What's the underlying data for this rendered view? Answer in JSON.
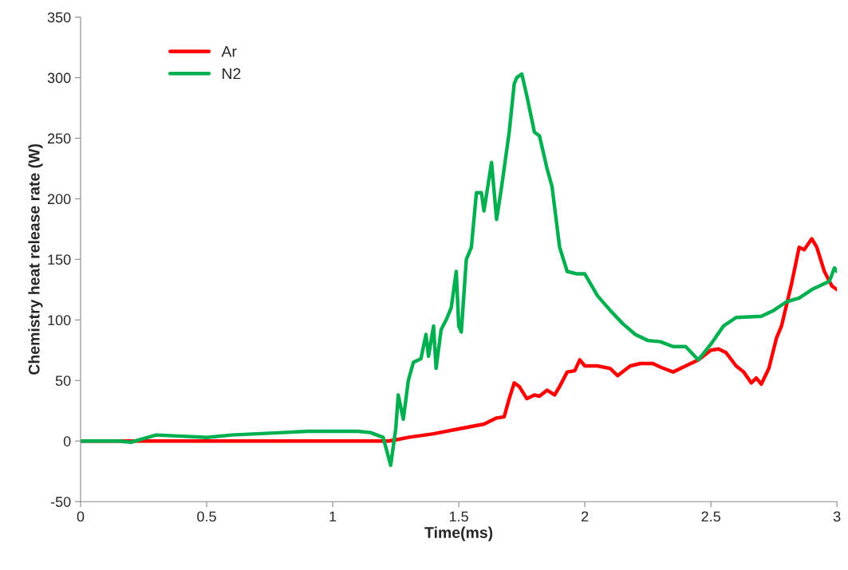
{
  "chart_data": {
    "type": "line",
    "xlabel": "Time(ms)",
    "ylabel": "Chemistry heat release rate (W)",
    "xlim": [
      0,
      3
    ],
    "ylim": [
      -50,
      350
    ],
    "xticks": [
      0,
      0.5,
      1,
      1.5,
      2,
      2.5,
      3
    ],
    "yticks": [
      -50,
      0,
      50,
      100,
      150,
      200,
      250,
      300,
      350
    ],
    "grid": false,
    "legend": "top left",
    "marker": "none",
    "line_style": "solid",
    "series": [
      {
        "name": "Ar",
        "color": "#ff0000",
        "x": [
          0,
          0.5,
          1.0,
          1.22,
          1.25,
          1.3,
          1.4,
          1.5,
          1.55,
          1.6,
          1.65,
          1.68,
          1.7,
          1.72,
          1.74,
          1.77,
          1.8,
          1.82,
          1.85,
          1.88,
          1.9,
          1.93,
          1.96,
          1.98,
          2.0,
          2.05,
          2.1,
          2.13,
          2.18,
          2.22,
          2.27,
          2.3,
          2.35,
          2.4,
          2.45,
          2.5,
          2.53,
          2.56,
          2.6,
          2.63,
          2.66,
          2.68,
          2.7,
          2.73,
          2.76,
          2.78,
          2.82,
          2.85,
          2.87,
          2.9,
          2.92,
          2.95,
          2.98,
          3.0
        ],
        "values": [
          0,
          0,
          0,
          0,
          1,
          3,
          6,
          10,
          12,
          14,
          19,
          20,
          35,
          48,
          45,
          35,
          38,
          37,
          42,
          38,
          45,
          57,
          58,
          67,
          62,
          62,
          60,
          54,
          62,
          64,
          64,
          61,
          57,
          62,
          67,
          75,
          76,
          73,
          62,
          57,
          48,
          52,
          47,
          60,
          85,
          95,
          130,
          160,
          158,
          167,
          160,
          140,
          128,
          125
        ]
      },
      {
        "name": "N2",
        "color": "#00b050",
        "x": [
          0,
          0.15,
          0.2,
          0.25,
          0.3,
          0.4,
          0.5,
          0.6,
          0.7,
          0.8,
          0.9,
          1.0,
          1.1,
          1.15,
          1.2,
          1.23,
          1.25,
          1.26,
          1.28,
          1.3,
          1.32,
          1.35,
          1.37,
          1.38,
          1.4,
          1.41,
          1.43,
          1.45,
          1.47,
          1.49,
          1.5,
          1.51,
          1.53,
          1.55,
          1.57,
          1.59,
          1.6,
          1.63,
          1.65,
          1.67,
          1.7,
          1.72,
          1.73,
          1.75,
          1.77,
          1.8,
          1.82,
          1.85,
          1.87,
          1.9,
          1.93,
          1.97,
          2.0,
          2.05,
          2.1,
          2.15,
          2.2,
          2.25,
          2.3,
          2.35,
          2.4,
          2.45,
          2.5,
          2.55,
          2.6,
          2.7,
          2.75,
          2.8,
          2.85,
          2.9,
          2.95,
          2.97,
          2.99,
          3.0
        ],
        "values": [
          0,
          0,
          -1,
          2,
          5,
          4,
          3,
          5,
          6,
          7,
          8,
          8,
          8,
          7,
          3,
          -20,
          10,
          38,
          18,
          50,
          65,
          68,
          88,
          70,
          95,
          60,
          92,
          100,
          110,
          140,
          95,
          90,
          150,
          160,
          205,
          205,
          190,
          230,
          183,
          210,
          255,
          295,
          300,
          303,
          285,
          255,
          252,
          225,
          210,
          160,
          140,
          138,
          138,
          120,
          108,
          97,
          88,
          83,
          82,
          78,
          78,
          67,
          80,
          95,
          102,
          103,
          108,
          115,
          118,
          125,
          130,
          132,
          143,
          140
        ]
      }
    ]
  }
}
